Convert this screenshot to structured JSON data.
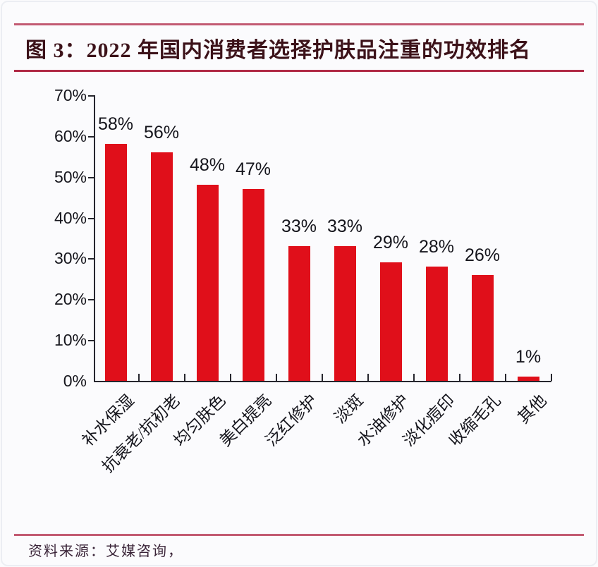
{
  "page": {
    "title": "图 3：2022 年国内消费者选择护肤品注重的功效排名",
    "source": "资料来源：艾媒咨询，"
  },
  "colors": {
    "bar": "#e00f1a",
    "rule_top": "#c25a72",
    "rule_title_bottom": "#b02a46",
    "rule_footer": "#c25a72",
    "axis": "#26262e",
    "title_text": "#3c1219",
    "footer_text": "#3a2438"
  },
  "chart_data": {
    "type": "bar",
    "title": "2022 年国内消费者选择护肤品注重的功效排名",
    "categories": [
      "补水保湿",
      "抗衰老/抗初老",
      "均匀肤色",
      "美白提亮",
      "泛红修护",
      "淡斑",
      "水油修护",
      "淡化痘印",
      "收缩毛孔",
      "其他"
    ],
    "values": [
      58,
      56,
      48,
      47,
      33,
      33,
      29,
      28,
      26,
      1
    ],
    "bar_labels": [
      "58%",
      "56%",
      "48%",
      "47%",
      "33%",
      "33%",
      "29%",
      "28%",
      "26%",
      "1%"
    ],
    "xlabel": "",
    "ylabel": "",
    "ylim": [
      0,
      70
    ],
    "ytick_values": [
      0,
      10,
      20,
      30,
      40,
      50,
      60,
      70
    ],
    "ytick_labels": [
      "0%",
      "10%",
      "20%",
      "30%",
      "40%",
      "50%",
      "60%",
      "70%"
    ],
    "grid": false,
    "legend": null,
    "bar_color": "#e00f1a"
  }
}
